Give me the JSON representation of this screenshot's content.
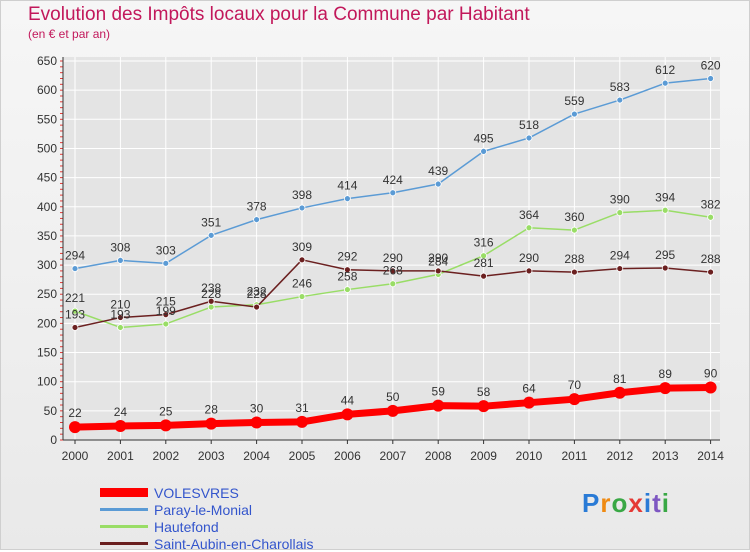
{
  "title": "Evolution des Impôts locaux pour la Commune par Habitant",
  "subtitle": "(en € et par an)",
  "logo": "Proxiti",
  "colors": {
    "title": "#c2185b",
    "axis": "#333333",
    "grid": "#ffffff",
    "tick_marks": "#e53935"
  },
  "chart_data": {
    "type": "line",
    "x": [
      "2000",
      "2001",
      "2002",
      "2003",
      "2004",
      "2005",
      "2006",
      "2007",
      "2008",
      "2009",
      "2010",
      "2011",
      "2012",
      "2013",
      "2014"
    ],
    "ylim": [
      0,
      650
    ],
    "yticks": [
      0,
      50,
      100,
      150,
      200,
      250,
      300,
      350,
      400,
      450,
      500,
      550,
      600,
      650
    ],
    "grid": true,
    "legend_position": "bottom-left",
    "series": [
      {
        "name": "VOLESVRES",
        "color": "#ff0000",
        "label_color": "#333333",
        "values": [
          22,
          24,
          25,
          28,
          30,
          31,
          44,
          50,
          59,
          58,
          64,
          70,
          81,
          89,
          90
        ]
      },
      {
        "name": "Paray-le-Monial",
        "color": "#5b9bd5",
        "label_color": "#333333",
        "values": [
          294,
          308,
          303,
          351,
          378,
          398,
          414,
          424,
          439,
          495,
          518,
          559,
          583,
          612,
          620
        ]
      },
      {
        "name": "Hautefond",
        "color": "#99dd66",
        "label_color": "#333333",
        "values": [
          221,
          193,
          199,
          228,
          232,
          246,
          258,
          268,
          284,
          316,
          364,
          360,
          390,
          394,
          382
        ]
      },
      {
        "name": "Saint-Aubin-en-Charollais",
        "color": "#6b2020",
        "label_color": "#333333",
        "values": [
          193,
          210,
          215,
          238,
          228,
          309,
          292,
          290,
          290,
          281,
          290,
          288,
          294,
          295,
          288
        ]
      }
    ]
  }
}
